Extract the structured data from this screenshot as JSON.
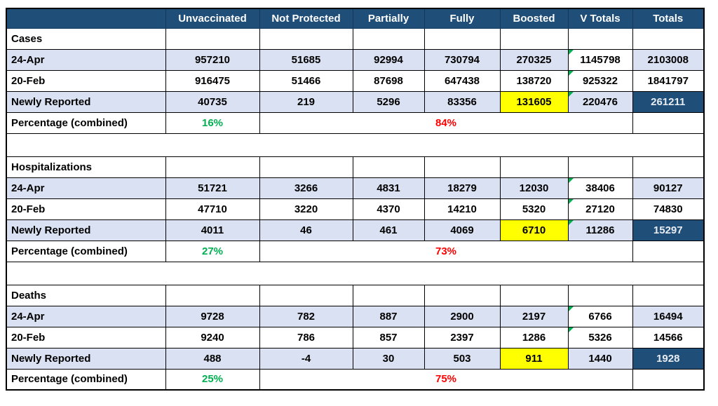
{
  "colors": {
    "header_bg": "#1f4e79",
    "band_row": "#d9e1f2",
    "highlight_yellow": "#ffff00",
    "total_cell_navy": "#1f4e79",
    "total_cell_text": "#e9edf2",
    "percent_green": "#00b050",
    "percent_red": "#ff0000"
  },
  "table": {
    "headers": [
      "",
      "Unvaccinated",
      "Not Protected",
      "Partially",
      "Fully",
      "Boosted",
      "V Totals",
      "Totals"
    ],
    "percentage_label": "Percentage (combined)",
    "sections": [
      {
        "title": "Cases",
        "rows": [
          {
            "label": "24-Apr",
            "banded": true,
            "cells": [
              {
                "v": "957210"
              },
              {
                "v": "51685"
              },
              {
                "v": "92994"
              },
              {
                "v": "730794"
              },
              {
                "v": "270325"
              },
              {
                "v": "1145798",
                "bg": "white",
                "flag": true
              },
              {
                "v": "2103008"
              }
            ]
          },
          {
            "label": "20-Feb",
            "banded": false,
            "cells": [
              {
                "v": "916475"
              },
              {
                "v": "51466"
              },
              {
                "v": "87698"
              },
              {
                "v": "647438"
              },
              {
                "v": "138720"
              },
              {
                "v": "925322",
                "flag": true
              },
              {
                "v": "1841797"
              }
            ]
          },
          {
            "label": "Newly Reported",
            "banded": true,
            "cells": [
              {
                "v": "40735"
              },
              {
                "v": "219"
              },
              {
                "v": "5296"
              },
              {
                "v": "83356"
              },
              {
                "v": "131605",
                "bg": "yellow"
              },
              {
                "v": "220476",
                "flag": true
              },
              {
                "v": "261211",
                "bg": "navy"
              }
            ]
          }
        ],
        "percentage": {
          "green": "16%",
          "red": "84%"
        }
      },
      {
        "title": "Hospitalizations",
        "rows": [
          {
            "label": "24-Apr",
            "banded": true,
            "cells": [
              {
                "v": "51721"
              },
              {
                "v": "3266"
              },
              {
                "v": "4831"
              },
              {
                "v": "18279"
              },
              {
                "v": "12030"
              },
              {
                "v": "38406",
                "bg": "white",
                "flag": true
              },
              {
                "v": "90127"
              }
            ]
          },
          {
            "label": "20-Feb",
            "banded": false,
            "cells": [
              {
                "v": "47710"
              },
              {
                "v": "3220"
              },
              {
                "v": "4370"
              },
              {
                "v": "14210"
              },
              {
                "v": "5320"
              },
              {
                "v": "27120",
                "flag": true
              },
              {
                "v": "74830"
              }
            ]
          },
          {
            "label": "Newly Reported",
            "banded": true,
            "cells": [
              {
                "v": "4011"
              },
              {
                "v": "46"
              },
              {
                "v": "461"
              },
              {
                "v": "4069"
              },
              {
                "v": "6710",
                "bg": "yellow"
              },
              {
                "v": "11286",
                "flag": true
              },
              {
                "v": "15297",
                "bg": "navy"
              }
            ]
          }
        ],
        "percentage": {
          "green": "27%",
          "red": "73%"
        }
      },
      {
        "title": "Deaths",
        "rows": [
          {
            "label": "24-Apr",
            "banded": true,
            "cells": [
              {
                "v": "9728"
              },
              {
                "v": "782"
              },
              {
                "v": "887"
              },
              {
                "v": "2900"
              },
              {
                "v": "2197"
              },
              {
                "v": "6766",
                "bg": "white",
                "flag": true
              },
              {
                "v": "16494"
              }
            ]
          },
          {
            "label": "20-Feb",
            "banded": false,
            "cells": [
              {
                "v": "9240"
              },
              {
                "v": "786"
              },
              {
                "v": "857"
              },
              {
                "v": "2397"
              },
              {
                "v": "1286"
              },
              {
                "v": "5326",
                "flag": true
              },
              {
                "v": "14566"
              }
            ]
          },
          {
            "label": "Newly Reported",
            "banded": true,
            "cells": [
              {
                "v": "488"
              },
              {
                "v": "-4"
              },
              {
                "v": "30"
              },
              {
                "v": "503"
              },
              {
                "v": "911",
                "bg": "yellow"
              },
              {
                "v": "1440"
              },
              {
                "v": "1928",
                "bg": "navy"
              }
            ]
          }
        ],
        "percentage": {
          "green": "25%",
          "red": "75%"
        }
      }
    ]
  },
  "chart_data": {
    "type": "table",
    "columns": [
      "Unvaccinated",
      "Not Protected",
      "Partially",
      "Fully",
      "Boosted",
      "V Totals",
      "Totals"
    ],
    "sections": [
      {
        "name": "Cases",
        "rows": [
          {
            "label": "24-Apr",
            "values": [
              957210,
              51685,
              92994,
              730794,
              270325,
              1145798,
              2103008
            ]
          },
          {
            "label": "20-Feb",
            "values": [
              916475,
              51466,
              87698,
              647438,
              138720,
              925322,
              1841797
            ]
          },
          {
            "label": "Newly Reported",
            "values": [
              40735,
              219,
              5296,
              83356,
              131605,
              220476,
              261211
            ]
          },
          {
            "label": "Percentage (combined)",
            "unvaccinated_pct": "16%",
            "vaccinated_pct": "84%"
          }
        ]
      },
      {
        "name": "Hospitalizations",
        "rows": [
          {
            "label": "24-Apr",
            "values": [
              51721,
              3266,
              4831,
              18279,
              12030,
              38406,
              90127
            ]
          },
          {
            "label": "20-Feb",
            "values": [
              47710,
              3220,
              4370,
              14210,
              5320,
              27120,
              74830
            ]
          },
          {
            "label": "Newly Reported",
            "values": [
              4011,
              46,
              461,
              4069,
              6710,
              11286,
              15297
            ]
          },
          {
            "label": "Percentage (combined)",
            "unvaccinated_pct": "27%",
            "vaccinated_pct": "73%"
          }
        ]
      },
      {
        "name": "Deaths",
        "rows": [
          {
            "label": "24-Apr",
            "values": [
              9728,
              782,
              887,
              2900,
              2197,
              6766,
              16494
            ]
          },
          {
            "label": "20-Feb",
            "values": [
              9240,
              786,
              857,
              2397,
              1286,
              5326,
              14566
            ]
          },
          {
            "label": "Newly Reported",
            "values": [
              488,
              -4,
              30,
              503,
              911,
              1440,
              1928
            ]
          },
          {
            "label": "Percentage (combined)",
            "unvaccinated_pct": "25%",
            "vaccinated_pct": "75%"
          }
        ]
      }
    ],
    "layout": {
      "highlighted_column_on_newly_reported": "Boosted",
      "grid": true,
      "legend": false
    }
  }
}
